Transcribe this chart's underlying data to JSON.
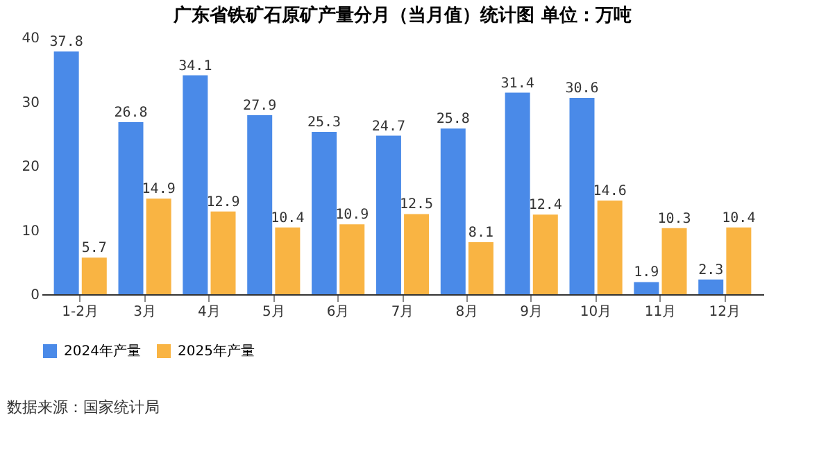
{
  "chart_data": {
    "type": "bar",
    "title": "广东省铁矿石原矿产量分月（当月值）统计图 单位：万吨",
    "categories": [
      "1-2月",
      "3月",
      "4月",
      "5月",
      "6月",
      "7月",
      "8月",
      "9月",
      "10月",
      "11月",
      "12月"
    ],
    "series": [
      {
        "name": "2024年产量",
        "color": "#4a8ae8",
        "values": [
          37.8,
          26.8,
          34.1,
          27.9,
          25.3,
          24.7,
          25.8,
          31.4,
          30.6,
          1.9,
          2.3
        ]
      },
      {
        "name": "2025年产量",
        "color": "#f9b443",
        "values": [
          5.7,
          14.9,
          12.9,
          10.4,
          10.9,
          12.5,
          8.1,
          12.4,
          14.6,
          10.3,
          10.4
        ]
      }
    ],
    "ylim": [
      0,
      40
    ],
    "yticks": [
      0,
      10,
      20,
      30,
      40
    ],
    "data_labels": true,
    "legend": "bottom",
    "grid": false,
    "annotations": [
      "数据来源：国家统计局"
    ]
  }
}
